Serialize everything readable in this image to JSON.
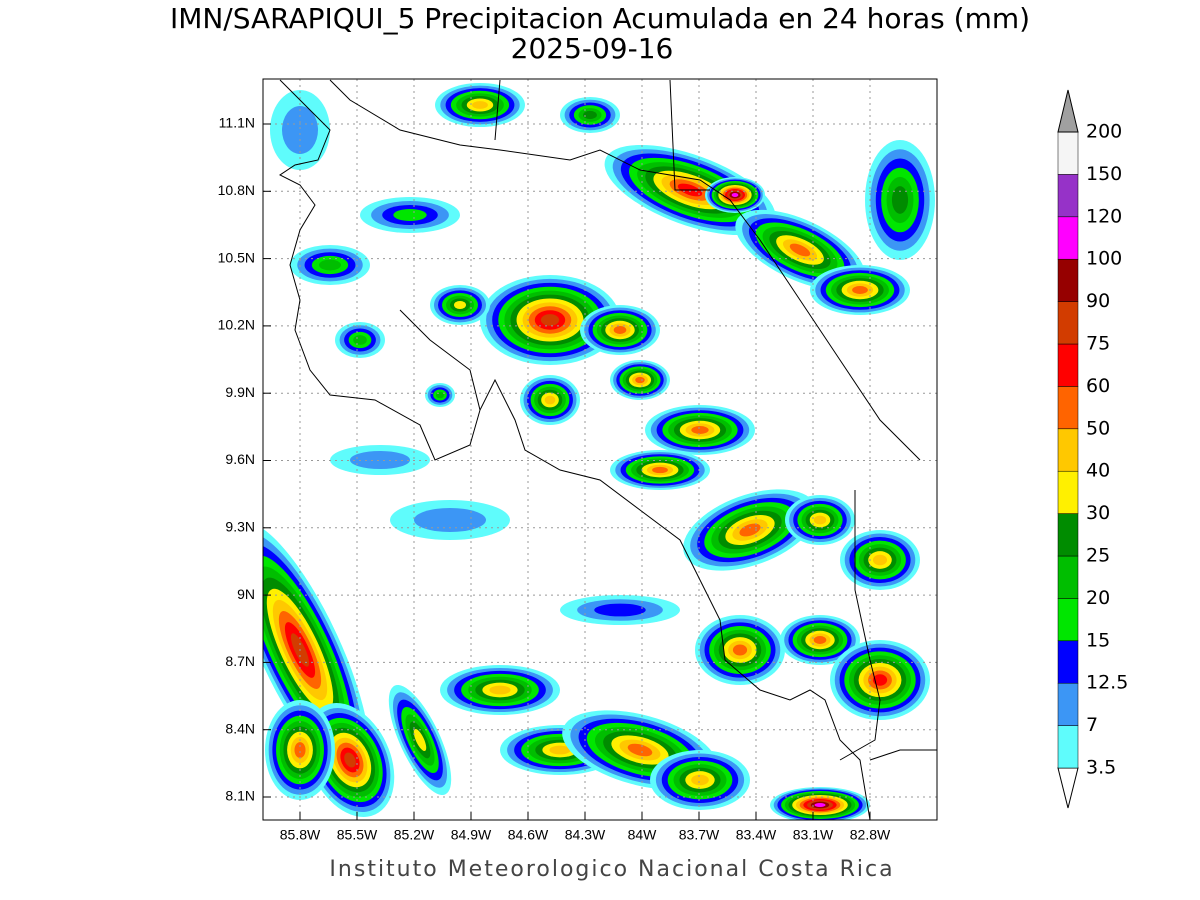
{
  "title": "IMN/SARAPIQUI_5 Precipitacion Acumulada en 24 horas (mm)",
  "subtitle": "2025-09-16",
  "map": {
    "lon_ticks": [
      "85.8W",
      "85.5W",
      "85.2W",
      "84.9W",
      "84.6W",
      "84.3W",
      "84W",
      "83.7W",
      "83.4W",
      "83.1W",
      "82.8W"
    ],
    "lat_ticks": [
      "11.1N",
      "10.8N",
      "10.5N",
      "10.2N",
      "9.9N",
      "9.6N",
      "9.3N",
      "9N",
      "8.7N",
      "8.4N",
      "8.1N"
    ]
  },
  "colorbar": {
    "levels": [
      3.5,
      7,
      12.5,
      15,
      20,
      25,
      30,
      40,
      50,
      60,
      75,
      90,
      100,
      120,
      150,
      200
    ],
    "colors": [
      "#ffffff",
      "#5ffcfc",
      "#3c96f5",
      "#0000ff",
      "#00e600",
      "#00be00",
      "#008c00",
      "#fff000",
      "#ffc800",
      "#ff6400",
      "#ff0000",
      "#d23c00",
      "#960000",
      "#ff00ff",
      "#9632c8",
      "#f5f5f5",
      "#a0a0a0"
    ]
  },
  "footer": "Instituto Meteorologico Nacional Costa Rica"
}
